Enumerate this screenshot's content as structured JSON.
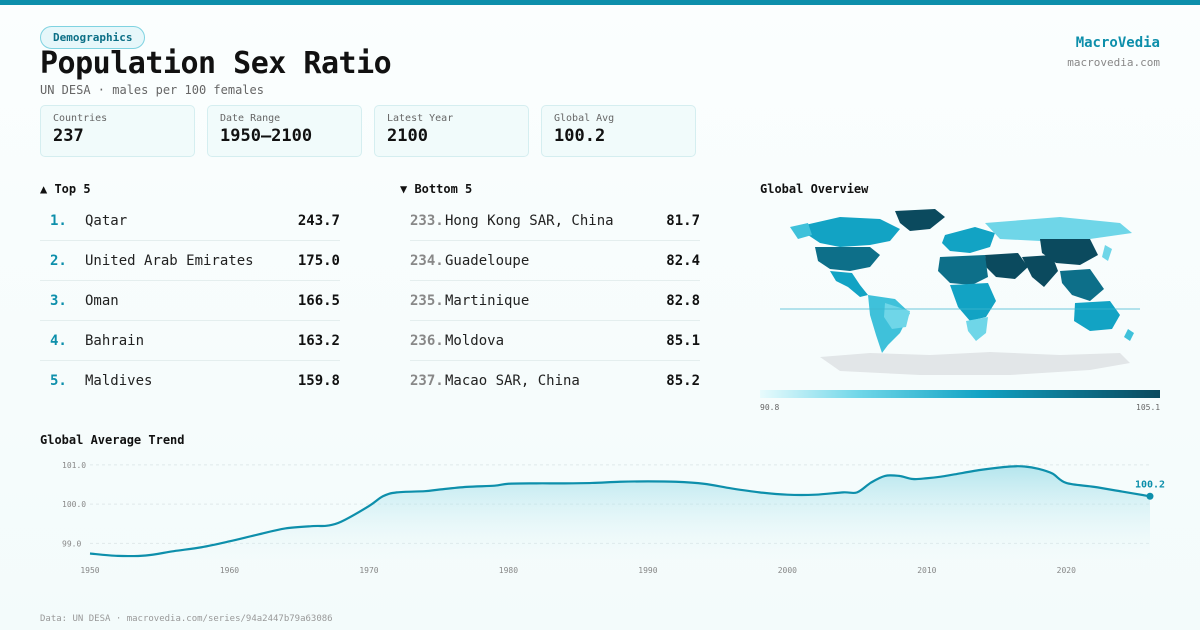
{
  "header": {
    "badge": "Demographics",
    "title": "Population Sex Ratio",
    "subtitle": "UN DESA · males per 100 females",
    "brand": "MacroVedia",
    "brand_url": "macrovedia.com"
  },
  "stats": [
    {
      "label": "Countries",
      "value": "237"
    },
    {
      "label": "Date Range",
      "value": "1950–2100"
    },
    {
      "label": "Latest Year",
      "value": "2100"
    },
    {
      "label": "Global Avg",
      "value": "100.2"
    }
  ],
  "top5": {
    "heading": "▲ Top 5",
    "items": [
      {
        "rank": "1.",
        "name": "Qatar",
        "value": "243.7"
      },
      {
        "rank": "2.",
        "name": "United Arab Emirates",
        "value": "175.0"
      },
      {
        "rank": "3.",
        "name": "Oman",
        "value": "166.5"
      },
      {
        "rank": "4.",
        "name": "Bahrain",
        "value": "163.2"
      },
      {
        "rank": "5.",
        "name": "Maldives",
        "value": "159.8"
      }
    ]
  },
  "bottom5": {
    "heading": "▼ Bottom 5",
    "items": [
      {
        "rank": "233.",
        "name": "Hong Kong SAR, China",
        "value": "81.7"
      },
      {
        "rank": "234.",
        "name": "Guadeloupe",
        "value": "82.4"
      },
      {
        "rank": "235.",
        "name": "Martinique",
        "value": "82.8"
      },
      {
        "rank": "236.",
        "name": "Moldova",
        "value": "85.1"
      },
      {
        "rank": "237.",
        "name": "Macao SAR, China",
        "value": "85.2"
      }
    ]
  },
  "map": {
    "heading": "Global Overview",
    "scale_min": "90.8",
    "scale_max": "105.1",
    "colors": {
      "low": "#e8fbfd",
      "mid": "#12a3c4",
      "high": "#0b4a5e",
      "nodata": "#e2e6e8"
    }
  },
  "trend": {
    "heading": "Global Average Trend",
    "end_label": "100.2",
    "line_color": "#0d8fab"
  },
  "chart_data": {
    "type": "area",
    "title": "Global Average Trend",
    "xlabel": "",
    "ylabel": "",
    "x": [
      1950,
      1952,
      1954,
      1956,
      1958,
      1960,
      1962,
      1964,
      1966,
      1967,
      1968,
      1970,
      1971,
      1972,
      1974,
      1975,
      1977,
      1979,
      1980,
      1982,
      1984,
      1986,
      1988,
      1990,
      1992,
      1994,
      1996,
      1998,
      2000,
      2002,
      2004,
      2005,
      2006,
      2007,
      2008,
      2009,
      2010,
      2011,
      2012,
      2014,
      2016,
      2017,
      2018,
      2019,
      2020,
      2022,
      2024,
      2026
    ],
    "y": [
      98.74,
      98.68,
      98.69,
      98.8,
      98.9,
      99.05,
      99.22,
      99.38,
      99.44,
      99.45,
      99.55,
      99.95,
      100.2,
      100.3,
      100.33,
      100.37,
      100.44,
      100.47,
      100.52,
      100.53,
      100.53,
      100.54,
      100.57,
      100.58,
      100.57,
      100.52,
      100.4,
      100.3,
      100.24,
      100.24,
      100.3,
      100.3,
      100.55,
      100.72,
      100.72,
      100.64,
      100.66,
      100.7,
      100.76,
      100.88,
      100.96,
      100.96,
      100.9,
      100.78,
      100.54,
      100.44,
      100.32,
      100.2
    ],
    "x_ticks": [
      "1950",
      "1960",
      "1970",
      "1980",
      "1990",
      "2000",
      "2010",
      "2020"
    ],
    "y_ticks": [
      "99.0",
      "100.0",
      "101.0"
    ],
    "xlim": [
      1950,
      2026
    ],
    "ylim": [
      98.6,
      101.1
    ],
    "grid": true
  }
}
